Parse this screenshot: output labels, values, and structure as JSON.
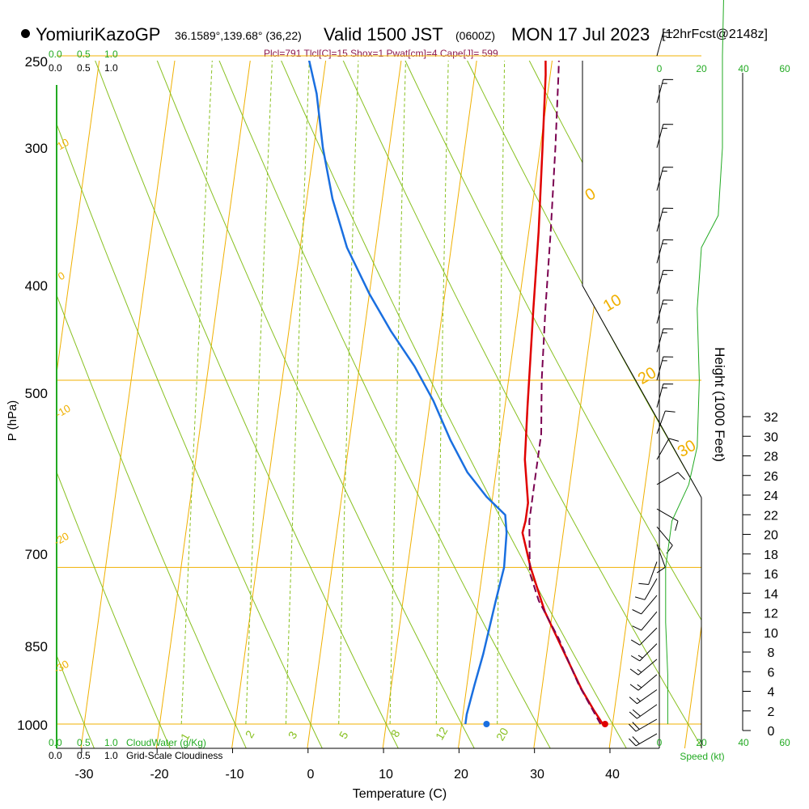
{
  "header": {
    "station": "YomiuriKazoGP",
    "coords": "36.1589°,139.68° (36,22)",
    "valid": "Valid 1500 JST",
    "valid_z": "(0600Z)",
    "valid_date": "MON 17 Jul 2023",
    "forecast": "[12hrFcst@2148z]",
    "indices": "Plcl=791 Tlcl[C]=15 Shox=1 Pwat[cm]=4 Cape[J]= 599"
  },
  "colors": {
    "temperature": "#e00000",
    "dewpoint": "#1a6fe0",
    "parcel": "#7a0050",
    "isotherm": "#f0b000",
    "dry_adiabat": "#88c020",
    "mixing_ratio": "#88c020",
    "cloud": "#22aa22",
    "indices_text": "#8b1a50"
  },
  "chart_data": {
    "type": "line",
    "xlabel": "Temperature (C)",
    "ylabel": "P (hPa)",
    "y2label": "Height (1000 Feet)",
    "x_ticks": [
      "-30",
      "-20",
      "-10",
      "0",
      "10",
      "20",
      "30",
      "40"
    ],
    "p_ticks": [
      "250",
      "300",
      "400",
      "500",
      "700",
      "850",
      "1000"
    ],
    "height_ticks": [
      "0",
      "2",
      "4",
      "6",
      "8",
      "10",
      "12",
      "14",
      "16",
      "18",
      "20",
      "22",
      "24",
      "26",
      "28",
      "30",
      "32"
    ],
    "xlim": [
      -33,
      46
    ],
    "plim": [
      250,
      1020
    ],
    "isotherm_labels": [
      "10",
      "0",
      "-10",
      "-20",
      "-30",
      "0",
      "10",
      "20",
      "30"
    ],
    "mixing_ratio_labels": [
      "1",
      "2",
      "3",
      "5",
      "8",
      "12",
      "20"
    ],
    "cloud_scale_top": [
      "0.0",
      "0.5",
      "1.0"
    ],
    "cloud_scale_top2": [
      "0.0",
      "0.5",
      "1.0"
    ],
    "cloud_scale_bottom": [
      "0.0",
      "0.5",
      "1.0"
    ],
    "cloud_scale_bottom2": [
      "0.0",
      "0.5",
      "1.0"
    ],
    "cloud_water_label": "CloudWater (g/Kg)",
    "cloudiness_label": "Grid-Scale Cloudiness",
    "speed_ticks": [
      "0",
      "20",
      "40",
      "60"
    ],
    "speed_label": "Speed (kt)",
    "series": [
      {
        "name": "temperature",
        "points": [
          [
            38.7,
            1000
          ],
          [
            37.2,
            985
          ],
          [
            35.3,
            965
          ],
          [
            32.0,
            925
          ],
          [
            29.0,
            890
          ],
          [
            26.3,
            850
          ],
          [
            24.6,
            820
          ],
          [
            24.8,
            810
          ],
          [
            24.8,
            795
          ],
          [
            23.6,
            760
          ],
          [
            23.0,
            720
          ],
          [
            22.0,
            650
          ],
          [
            21.3,
            600
          ],
          [
            20.3,
            550
          ],
          [
            19.4,
            510
          ],
          [
            18.3,
            480
          ],
          [
            16.9,
            430
          ],
          [
            16.0,
            400
          ],
          [
            14.2,
            360
          ],
          [
            12.2,
            320
          ],
          [
            10.0,
            280
          ],
          [
            8.4,
            260
          ]
        ]
      },
      {
        "name": "dewpoint",
        "points": [
          [
            20.5,
            1000
          ],
          [
            20.5,
            990
          ],
          [
            21.0,
            960
          ],
          [
            21.6,
            930
          ],
          [
            22.3,
            880
          ],
          [
            22.8,
            850
          ],
          [
            22.5,
            820
          ],
          [
            22.0,
            805
          ],
          [
            19.2,
            790
          ],
          [
            16.2,
            770
          ],
          [
            13.4,
            745
          ],
          [
            10.4,
            715
          ],
          [
            7.3,
            690
          ],
          [
            3.5,
            665
          ],
          [
            0.0,
            640
          ],
          [
            -3.8,
            610
          ],
          [
            -6.6,
            580
          ],
          [
            -8.8,
            550
          ],
          [
            -10.6,
            520
          ],
          [
            -14.8,
            475
          ],
          [
            -17.8,
            440
          ],
          [
            -20.3,
            400
          ],
          [
            -17.8,
            370
          ],
          [
            -14.0,
            345
          ],
          [
            -10.0,
            323
          ],
          [
            -5.8,
            306
          ],
          [
            -2.8,
            294
          ],
          [
            -0.6,
            285
          ],
          [
            0.4,
            273
          ],
          [
            0.4,
            265
          ],
          [
            0.8,
            257
          ]
        ]
      },
      {
        "name": "parcel",
        "points": [
          [
            38.4,
            1000
          ],
          [
            34.8,
            960
          ],
          [
            31.3,
            915
          ],
          [
            28.0,
            880
          ],
          [
            26.3,
            855
          ],
          [
            25.3,
            810
          ],
          [
            25.3,
            780
          ],
          [
            25.3,
            740
          ],
          [
            24.4,
            700
          ],
          [
            23.6,
            650
          ],
          [
            22.9,
            600
          ],
          [
            22.0,
            550
          ],
          [
            21.1,
            510
          ],
          [
            20.0,
            470
          ],
          [
            18.8,
            430
          ],
          [
            17.4,
            400
          ],
          [
            15.4,
            360
          ],
          [
            13.2,
            320
          ],
          [
            11.0,
            280
          ],
          [
            10.8,
            260
          ]
        ]
      }
    ],
    "surface_markers": [
      {
        "name": "surface-temperature",
        "value": [
          39.0,
          1000
        ]
      },
      {
        "name": "surface-dewpoint",
        "value": [
          23.3,
          1000
        ]
      }
    ],
    "wind_barbs": [
      {
        "p": 1010,
        "dir": 240,
        "kt": 20
      },
      {
        "p": 995,
        "dir": 240,
        "kt": 20
      },
      {
        "p": 980,
        "dir": 235,
        "kt": 20
      },
      {
        "p": 965,
        "dir": 235,
        "kt": 15
      },
      {
        "p": 950,
        "dir": 230,
        "kt": 15
      },
      {
        "p": 935,
        "dir": 230,
        "kt": 15
      },
      {
        "p": 920,
        "dir": 225,
        "kt": 15
      },
      {
        "p": 905,
        "dir": 225,
        "kt": 10
      },
      {
        "p": 890,
        "dir": 220,
        "kt": 10
      },
      {
        "p": 875,
        "dir": 220,
        "kt": 10
      },
      {
        "p": 860,
        "dir": 210,
        "kt": 10
      },
      {
        "p": 845,
        "dir": 200,
        "kt": 10
      },
      {
        "p": 830,
        "dir": 160,
        "kt": 10
      },
      {
        "p": 815,
        "dir": 140,
        "kt": 10
      },
      {
        "p": 800,
        "dir": 120,
        "kt": 10
      },
      {
        "p": 780,
        "dir": 60,
        "kt": 10
      },
      {
        "p": 760,
        "dir": 30,
        "kt": 10
      },
      {
        "p": 740,
        "dir": 20,
        "kt": 10
      },
      {
        "p": 720,
        "dir": 15,
        "kt": 15
      },
      {
        "p": 700,
        "dir": 15,
        "kt": 15
      },
      {
        "p": 680,
        "dir": 15,
        "kt": 15
      },
      {
        "p": 660,
        "dir": 15,
        "kt": 15
      },
      {
        "p": 640,
        "dir": 15,
        "kt": 15
      },
      {
        "p": 620,
        "dir": 15,
        "kt": 15
      },
      {
        "p": 600,
        "dir": 15,
        "kt": 15
      },
      {
        "p": 575,
        "dir": 15,
        "kt": 15
      },
      {
        "p": 550,
        "dir": 15,
        "kt": 15
      },
      {
        "p": 525,
        "dir": 15,
        "kt": 15
      },
      {
        "p": 500,
        "dir": 15,
        "kt": 15
      },
      {
        "p": 470,
        "dir": 15,
        "kt": 15
      },
      {
        "p": 440,
        "dir": 15,
        "kt": 15
      },
      {
        "p": 410,
        "dir": 15,
        "kt": 15
      },
      {
        "p": 385,
        "dir": 15,
        "kt": 15
      },
      {
        "p": 360,
        "dir": 20,
        "kt": 15
      },
      {
        "p": 340,
        "dir": 20,
        "kt": 15
      },
      {
        "p": 320,
        "dir": 20,
        "kt": 15
      },
      {
        "p": 300,
        "dir": 20,
        "kt": 15
      },
      {
        "p": 282,
        "dir": 25,
        "kt": 15
      },
      {
        "p": 266,
        "dir": 25,
        "kt": 15
      }
    ],
    "wind_speed_profile": [
      [
        4,
        1000
      ],
      [
        4,
        950
      ],
      [
        3,
        900
      ],
      [
        3,
        850
      ],
      [
        6,
        810
      ],
      [
        14,
        780
      ],
      [
        18,
        750
      ],
      [
        19,
        700
      ],
      [
        18,
        650
      ],
      [
        20,
        610
      ],
      [
        28,
        590
      ],
      [
        30,
        550
      ],
      [
        30,
        500
      ],
      [
        31,
        450
      ],
      [
        31,
        400
      ],
      [
        32,
        350
      ],
      [
        33,
        300
      ],
      [
        33,
        262
      ]
    ]
  }
}
